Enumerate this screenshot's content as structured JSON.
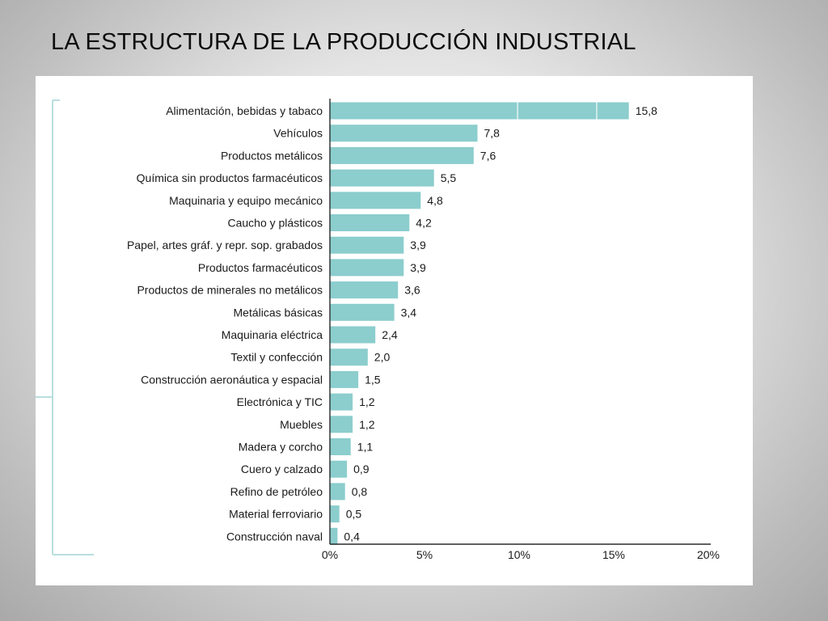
{
  "slide": {
    "title": "LA ESTRUCTURA DE LA PRODUCCIÓN INDUSTRIAL"
  },
  "colors": {
    "bar": "#8ccdcd",
    "frame": "#b9dede",
    "axis": "#2b2b2b",
    "panel": "#ffffff"
  },
  "chart_data": {
    "type": "bar",
    "orientation": "horizontal",
    "title": "",
    "xlabel": "",
    "ylabel": "",
    "categories": [
      "Alimentación, bebidas y tabaco",
      "Vehículos",
      "Productos metálicos",
      "Química sin productos farmacéuticos",
      "Maquinaria y equipo mecánico",
      "Caucho y plásticos",
      "Papel, artes gráf. y repr. sop. grabados",
      "Productos farmacéuticos",
      "Productos de minerales no metálicos",
      "Metálicas básicas",
      "Maquinaria eléctrica",
      "Textil y confección",
      "Construcción aeronáutica y espacial",
      "Electrónica y TIC",
      "Muebles",
      "Madera y corcho",
      "Cuero y calzado",
      "Refino de petróleo",
      "Material ferroviario",
      "Construcción naval"
    ],
    "values": [
      15.8,
      7.8,
      7.6,
      5.5,
      4.8,
      4.2,
      3.9,
      3.9,
      3.6,
      3.4,
      2.4,
      2.0,
      1.5,
      1.2,
      1.2,
      1.1,
      0.9,
      0.8,
      0.5,
      0.4
    ],
    "value_labels": [
      "15,8",
      "7,8",
      "7,6",
      "5,5",
      "4,8",
      "4,2",
      "3,9",
      "3,9",
      "3,6",
      "3,4",
      "2,4",
      "2,0",
      "1,5",
      "1,2",
      "1,2",
      "1,1",
      "0,9",
      "0,8",
      "0,5",
      "0,4"
    ],
    "xlim": [
      0,
      20
    ],
    "x_ticks": [
      0,
      5,
      10,
      15,
      20
    ],
    "x_tick_labels": [
      "0%",
      "5%",
      "10%",
      "15%",
      "20%"
    ],
    "grid": false,
    "legend": "none"
  }
}
